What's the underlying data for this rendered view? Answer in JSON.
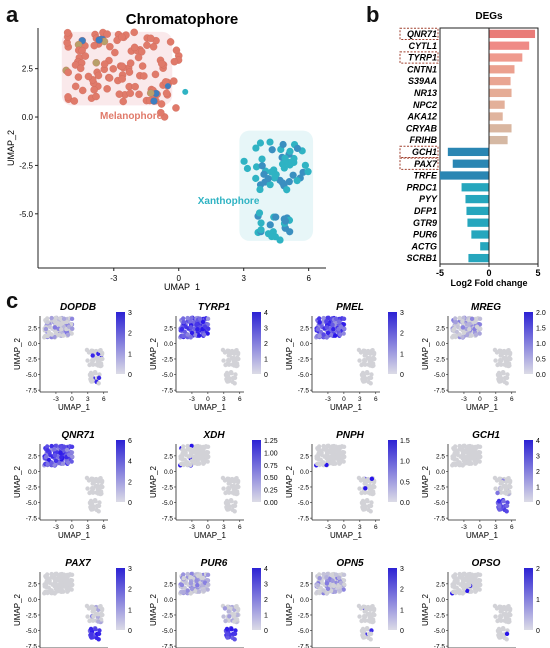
{
  "panel_letters": {
    "a": "a",
    "b": "b",
    "c": "c"
  },
  "chart_data": [
    {
      "id": "panel-a",
      "type": "scatter",
      "title": "Chromatophore",
      "xlabel": "UMAP_1",
      "ylabel": "UMAP_2",
      "xlim": [
        -6.5,
        6.8
      ],
      "ylim": [
        -7.8,
        4.6
      ],
      "xticks": [
        -3,
        0,
        3,
        6
      ],
      "yticks": [
        2.5,
        0.0,
        -2.5,
        -5.0
      ],
      "ytick_labels": [
        "2.5",
        "0.0",
        "-2.5",
        "-5.0"
      ],
      "clusters": [
        {
          "name": "Melanophore",
          "color": "#e07a6a",
          "label_pos": [
            -2.2,
            -0.1
          ],
          "center": [
            -2.5,
            2.7
          ],
          "spread": [
            2.0,
            1.5
          ],
          "count": 120
        },
        {
          "name": "Xanthophore",
          "color": "#2fb3c3",
          "label_pos": [
            2.3,
            -4.5
          ],
          "center": [
            4.6,
            -2.8
          ],
          "spread": [
            1.2,
            1.2
          ],
          "count": 70
        }
      ],
      "annotations": [
        "Melanophore",
        "Xanthophore"
      ]
    },
    {
      "id": "panel-b",
      "type": "bar",
      "title": "DEGs",
      "xlabel": "Log2 Fold change",
      "xlim": [
        -5,
        5
      ],
      "xticks": [
        -5,
        0,
        5
      ],
      "categories": [
        "QNR71",
        "CYTL1",
        "TYRP1",
        "CNTN1",
        "S39AA",
        "NR13",
        "NPC2",
        "AKA12",
        "CRYAB",
        "FRIHB",
        "GCH1",
        "PAX7",
        "TRFE",
        "PRDC1",
        "PYY",
        "DFP1",
        "GTR9",
        "PUR6",
        "ACTG",
        "SCRB1"
      ],
      "values": [
        4.7,
        4.1,
        3.4,
        2.6,
        2.2,
        2.3,
        1.6,
        1.4,
        2.3,
        1.9,
        -4.2,
        -3.7,
        -5.0,
        -2.8,
        -2.4,
        -2.3,
        -2.2,
        -1.8,
        -0.9,
        -2.1
      ],
      "boxed": [
        "QNR71",
        "TYRP1",
        "GCH1",
        "PAX7"
      ],
      "pos_color": "#ee8f8a",
      "neg_colors": [
        "#2a86b3",
        "#2a86b3",
        "#2a86b3",
        "#26a6bd",
        "#26a6bd",
        "#26a6bd",
        "#26a6bd",
        "#26a6bd",
        "#26a6bd",
        "#26a6bd"
      ],
      "pos_colors": [
        "#e97b78",
        "#ef8a86",
        "#ef9a8e",
        "#eba08f",
        "#e9a592",
        "#e5ac96",
        "#e3b09a",
        "#e0b49e",
        "#d9b6a0",
        "#d5b8a3"
      ]
    },
    {
      "id": "panel-c",
      "type": "scatter",
      "xlabel": "UMAP_1",
      "ylabel": "UMAP_2",
      "xticks": [
        -3,
        0,
        3,
        6
      ],
      "yticks": [
        2.5,
        0.0,
        -2.5,
        -5.0,
        -7.5
      ],
      "ytick_labels": [
        "2.5",
        "0.0",
        "-2.5",
        "-5.0",
        "-7.5"
      ],
      "xlim": [
        -6.0,
        6.8
      ],
      "ylim": [
        -7.8,
        4.4
      ],
      "genes": [
        {
          "name": "DOPDB",
          "expr": "mixed",
          "legend": [
            "3",
            "2",
            "1",
            "0"
          ],
          "max": 3
        },
        {
          "name": "TYRP1",
          "expr": "mel",
          "legend": [
            "4",
            "3",
            "2",
            "1",
            "0"
          ],
          "max": 4
        },
        {
          "name": "PMEL",
          "expr": "mel",
          "legend": [
            "3",
            "2",
            "1",
            "0"
          ],
          "max": 3
        },
        {
          "name": "MREG",
          "expr": "mel-low",
          "legend": [
            "2.0",
            "1.5",
            "1.0",
            "0.5",
            "0.0"
          ],
          "max": 2
        },
        {
          "name": "QNR71",
          "expr": "mel",
          "legend": [
            "6",
            "4",
            "2",
            "0"
          ],
          "max": 6
        },
        {
          "name": "XDH",
          "expr": "sparse",
          "legend": [
            "1.25",
            "1.00",
            "0.75",
            "0.50",
            "0.25",
            "0.00"
          ],
          "max": 1.25
        },
        {
          "name": "PNPH",
          "expr": "sparse",
          "legend": [
            "1.5",
            "1.0",
            "0.5",
            "0.0"
          ],
          "max": 1.5
        },
        {
          "name": "GCH1",
          "expr": "xan",
          "legend": [
            "4",
            "3",
            "2",
            "1",
            "0"
          ],
          "max": 4
        },
        {
          "name": "PAX7",
          "expr": "xan",
          "legend": [
            "3",
            "2",
            "1",
            "0"
          ],
          "max": 3
        },
        {
          "name": "PUR6",
          "expr": "both",
          "legend": [
            "4",
            "3",
            "2",
            "1",
            "0"
          ],
          "max": 4
        },
        {
          "name": "OPN5",
          "expr": "mixed",
          "legend": [
            "3",
            "2",
            "1",
            "0"
          ],
          "max": 3
        },
        {
          "name": "OPSO",
          "expr": "sparse",
          "legend": [
            "2",
            "1",
            "0"
          ],
          "max": 2
        }
      ]
    }
  ]
}
